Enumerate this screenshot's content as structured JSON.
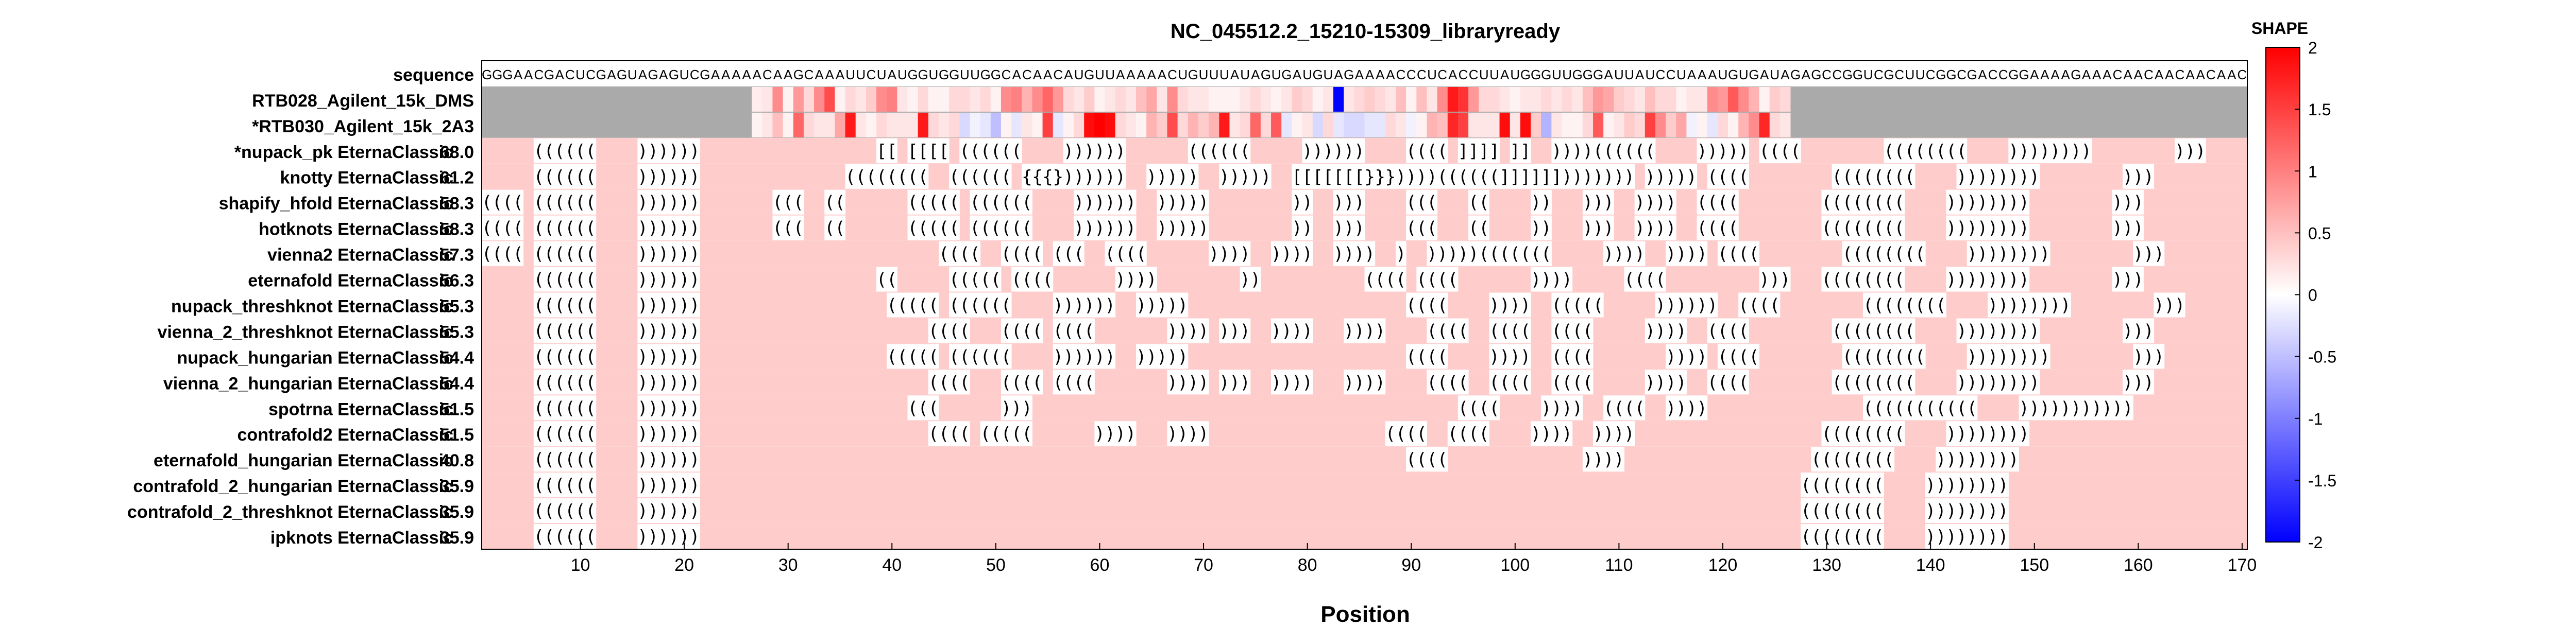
{
  "chart_data": {
    "type": "heatmap",
    "title": "NC_045512.2_15210-15309_libraryready",
    "xlabel": "Position",
    "ylabel": "",
    "xlim": [
      1,
      170
    ],
    "x_ticks": [
      10,
      20,
      30,
      40,
      50,
      60,
      70,
      80,
      90,
      100,
      110,
      120,
      130,
      140,
      150,
      160,
      170
    ],
    "sequence_label": "sequence",
    "sequence": "GGGAACGACUCGAGUAGAGUCGAAAAACAAGCAAAUUCUAUGGUGGUUGGCACAACAUGUUAAAAACUGUUUAUAGUGAUGUAGAAAACCCUCACCUUAUGGGUUGGGAUUAUCCUAAAUGUGAUAGAGCCGGUCGCUUCGGCGACCGGAAAAGAAACAACAACAACAAC",
    "colorbar": {
      "label": "SHAPE",
      "range": [
        -2,
        2
      ],
      "ticks": [
        "2",
        "1.5",
        "1",
        "0.5",
        "0",
        "-0.5",
        "-1",
        "-1.5",
        "-2"
      ],
      "colors": {
        "low": "#0000ff",
        "mid": "#ffffff",
        "high": "#ff0000",
        "missing": "#aaaaaa"
      }
    },
    "reactivity_window": [
      27,
      126
    ],
    "reactivity_tracks": [
      {
        "name": "RTB028_Agilent_15k_DMS",
        "values": [
          0.15,
          0.2,
          0.9,
          0.1,
          0.8,
          0.3,
          0.9,
          1.4,
          0.1,
          0.3,
          0.2,
          0.4,
          0.9,
          1.0,
          0.2,
          0.1,
          0.3,
          0.1,
          0.1,
          0.3,
          0.3,
          0.2,
          0.3,
          0.1,
          0.9,
          1.0,
          0.6,
          0.9,
          1.2,
          0.8,
          0.3,
          0.2,
          0.4,
          0.1,
          0.2,
          0.3,
          0.2,
          0.5,
          0.7,
          0.2,
          0.9,
          0.3,
          0.2,
          0.2,
          0.1,
          0.1,
          0.1,
          0.2,
          0.3,
          0.2,
          0.1,
          0.2,
          0.4,
          0.3,
          0.1,
          0.2,
          -2.0,
          0.2,
          0.3,
          0.4,
          0.3,
          0.2,
          0.5,
          0.1,
          0.5,
          0.2,
          0.9,
          1.8,
          1.6,
          0.8,
          0.3,
          0.3,
          0.2,
          0.1,
          0.2,
          0.2,
          0.3,
          0.2,
          0.3,
          0.2,
          0.5,
          0.8,
          0.7,
          0.4,
          0.3,
          0.2,
          0.5,
          0.3,
          0.3,
          0.1,
          0.2,
          0.2,
          0.9,
          0.8,
          1.3,
          0.9,
          0.6,
          0.1,
          0.4,
          0.3
        ]
      },
      {
        "name": "*RTB030_Agilent_15k_2A3",
        "values": [
          0.1,
          0.2,
          0.5,
          0.1,
          1.2,
          0.3,
          0.2,
          0.2,
          0.7,
          1.8,
          0.2,
          0.1,
          0.3,
          0.2,
          0.2,
          0.2,
          1.8,
          0.3,
          0.2,
          0.3,
          -0.3,
          -0.1,
          -0.2,
          -0.5,
          0.1,
          -0.2,
          0.2,
          0.1,
          1.5,
          -0.2,
          0.1,
          0.3,
          1.9,
          2.0,
          1.9,
          0.3,
          0.2,
          0.1,
          0.6,
          0.4,
          1.4,
          0.3,
          0.6,
          0.4,
          0.6,
          1.8,
          0.2,
          0.3,
          1.2,
          0.3,
          1.3,
          -0.2,
          0.1,
          0.2,
          -0.3,
          0.3,
          -0.2,
          -0.3,
          -0.3,
          -0.2,
          -0.2,
          0.3,
          0.2,
          -0.1,
          0.1,
          0.6,
          0.5,
          1.7,
          1.5,
          0.2,
          0.2,
          0.2,
          1.9,
          0.2,
          1.9,
          0.4,
          -0.6,
          0.2,
          0.1,
          0.1,
          0.3,
          1.3,
          0.1,
          0.2,
          0.4,
          0.3,
          1.5,
          0.9,
          0.4,
          0.7,
          -0.1,
          0.1,
          -0.2,
          0.3,
          0.1,
          0.6,
          0.9,
          1.7,
          0.3,
          0.2
        ]
      }
    ],
    "structure_rows": [
      {
        "label": "*nupack_pk EternaClassic",
        "score": "68.0",
        "structure": ".....((((((....)))))).................[[.[[[[.((((((....))))))......((((((.....))))))....((((.]]]].]]..))))((((((....))))).((((........((((((((....))))))))........))).............."
      },
      {
        "label": "knotty EternaClassic",
        "score": "61.2",
        "structure": ".....((((((....))))))..............((((((((..((((((.{{{}))))))..)))))..)))))..[[[[[[[}}}))))((((((]]]]]]))))))).))))).((((........((((((((....))))))))........))).............."
      },
      {
        "label": "shapify_hfold EternaClassic",
        "score": "58.3",
        "structure": "((((.((((((....)))))).......(((..((......(((((.((((((....))))))..)))))........))..)))....(((...((....))...)))..))))..((((........((((((((....))))))))........))).............."
      },
      {
        "label": "hotknots EternaClassic",
        "score": "58.3",
        "structure": "((((.((((((....)))))).......(((..((......(((((.((((((....))))))..)))))........))..)))....(((...((....))...)))..))))..((((........((((((((....))))))))........))).............."
      },
      {
        "label": "vienna2 EternaClassic",
        "score": "57.3",
        "structure": "((((.((((((....)))))).......................((((..((((.(((..((((......))))..))))..))))..)..)))))(((((((.....))))..)))).((((........((((((((....))))))))........))).............."
      },
      {
        "label": "eternafold EternaClassic",
        "score": "56.3",
        "structure": ".....((((((....)))))).................((.....(((((.((((......))))........))..........((((.((((.......)))).....((((.........)))...((((((((....))))))))........))).............."
      },
      {
        "label": "nupack_threshknot EternaClassic",
        "score": "55.3",
        "structure": ".....((((((....))))))..................(((((.((((((....))))))..))))).....................((((....))))..(((((.....))))))..((((........((((((((....))))))))........))).............."
      },
      {
        "label": "vienna_2_threshknot EternaClassic",
        "score": "55.3",
        "structure": ".....((((((....))))))......................((((...((((.((((.......)))).)))..))))...))))....((((..((((..((((.....))))..((((........((((((((....))))))))........))).............."
      },
      {
        "label": "nupack_hungarian EternaClassic",
        "score": "54.4",
        "structure": ".....((((((....))))))..................(((((.((((((....))))))..))))).....................((((....))))..((((.......)))).((((........((((((((....))))))))........))).............."
      },
      {
        "label": "vienna_2_hungarian EternaClassic",
        "score": "54.4",
        "structure": ".....((((((....))))))......................((((...((((.((((.......)))).)))..))))...))))....((((..((((..((((.....))))..((((........((((((((....))))))))........))).............."
      },
      {
        "label": "spotrna EternaClassic",
        "score": "51.5",
        "structure": ".....((((((....))))))....................(((......))).........................................((((....))))..((((..))))...............(((((((((((....))))))))))).............................."
      },
      {
        "label": "contrafold2 EternaClassic",
        "score": "51.5",
        "structure": ".....((((((....))))))......................((((.(((((......))))...)))).................((((..((((....))))..))))..................((((((((....))))))))................................"
      },
      {
        "label": "eternafold_hungarian EternaClassic",
        "score": "40.8",
        "structure": ".....((((((....))))))....................................................................((((.............))))..................((((((((....))))))))................................"
      },
      {
        "label": "contrafold_2_hungarian EternaClassic",
        "score": "35.9",
        "structure": ".....((((((....))))))..........................................................................................................((((((((....))))))))................................"
      },
      {
        "label": "contrafold_2_threshknot EternaClassic",
        "score": "35.9",
        "structure": ".....((((((....))))))..........................................................................................................((((((((....))))))))................................"
      },
      {
        "label": "ipknots EternaClassic",
        "score": "35.9",
        "structure": ".....((((((....))))))..........................................................................................................((((((((....))))))))................................"
      }
    ]
  }
}
